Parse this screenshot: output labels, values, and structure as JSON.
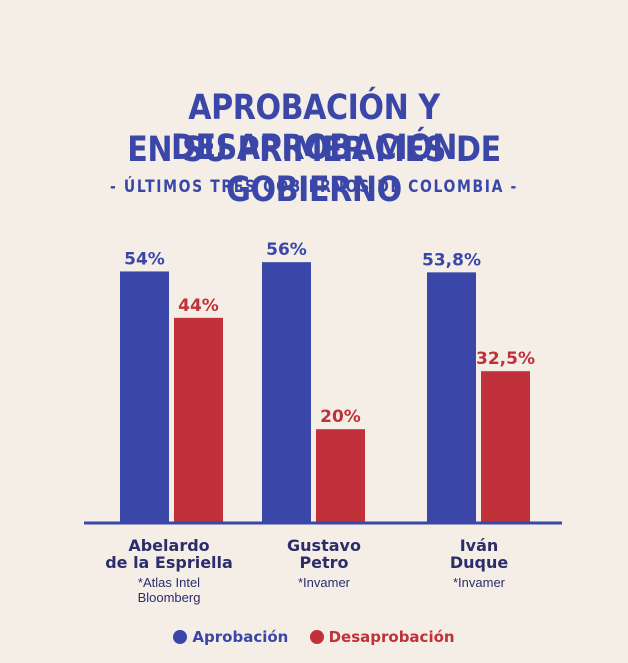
{
  "header": {
    "title_line1": "APROBACIÓN Y DESAPROBACIÓN",
    "title_line2": "EN SU PRIMER MES DE GOBIERNO",
    "subtitle": "- ÚLTIMOS TRES GOBIERNOS DE COLOMBIA -"
  },
  "colors": {
    "aprobacion": "#3a47a8",
    "desaprobacion": "#c0313a"
  },
  "chart_data": {
    "type": "bar",
    "title": "APROBACIÓN Y DESAPROBACIÓN EN SU PRIMER MES DE GOBIERNO",
    "subtitle": "- ÚLTIMOS TRES GOBIERNOS DE COLOMBIA -",
    "categories": [
      "Abelardo de la Espriella",
      "Gustavo Petro",
      "Iván Duque"
    ],
    "series": [
      {
        "name": "Aprobación",
        "values": [
          54,
          56,
          53.8
        ],
        "labels": [
          "54%",
          "56%",
          "53,8%"
        ]
      },
      {
        "name": "Desaprobación",
        "values": [
          44,
          20,
          32.5
        ],
        "labels": [
          "44%",
          "20%",
          "32,5%"
        ]
      }
    ],
    "ylim": [
      0,
      60
    ],
    "grid": false,
    "legend": "bottom"
  },
  "candidates": [
    {
      "name": "Abelardo\nde la Espriella",
      "source": "*Atlas Intel\nBloomberg"
    },
    {
      "name": "Gustavo\nPetro",
      "source": "*Invamer"
    },
    {
      "name": "Iván\nDuque",
      "source": "*Invamer"
    }
  ],
  "legend": {
    "aprobacion": "Aprobación",
    "desaprobacion": "Desaprobación"
  }
}
